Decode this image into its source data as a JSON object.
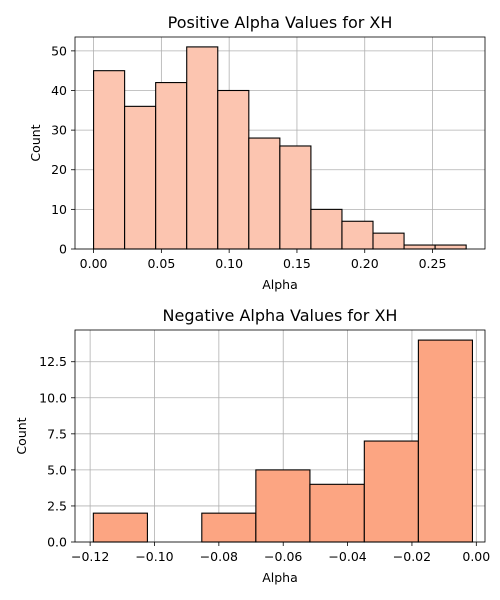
{
  "chart_data": [
    {
      "type": "bar",
      "title": "Positive Alpha Values for XH",
      "xlabel": "Alpha",
      "ylabel": "Count",
      "xlim": [
        -0.0137,
        0.2887
      ],
      "ylim": [
        0,
        53.5
      ],
      "grid": true,
      "color": "#fcc5b0",
      "edge_color": "#000000",
      "xticks": [
        0.0,
        0.05,
        0.1,
        0.15,
        0.2,
        0.25
      ],
      "xtick_labels": [
        "0.00",
        "0.05",
        "0.10",
        "0.15",
        "0.20",
        "0.25"
      ],
      "yticks": [
        0,
        10,
        20,
        30,
        40,
        50
      ],
      "ytick_labels": [
        "0",
        "10",
        "20",
        "30",
        "40",
        "50"
      ],
      "bins": [
        {
          "x0": 0.0,
          "x1": 0.0229,
          "value": 45
        },
        {
          "x0": 0.0229,
          "x1": 0.0458,
          "value": 36
        },
        {
          "x0": 0.0458,
          "x1": 0.0687,
          "value": 42
        },
        {
          "x0": 0.0687,
          "x1": 0.0916,
          "value": 51
        },
        {
          "x0": 0.0916,
          "x1": 0.1145,
          "value": 40
        },
        {
          "x0": 0.1145,
          "x1": 0.1374,
          "value": 28
        },
        {
          "x0": 0.1374,
          "x1": 0.1603,
          "value": 26
        },
        {
          "x0": 0.1603,
          "x1": 0.1832,
          "value": 10
        },
        {
          "x0": 0.1832,
          "x1": 0.2061,
          "value": 7
        },
        {
          "x0": 0.2061,
          "x1": 0.229,
          "value": 4
        },
        {
          "x0": 0.229,
          "x1": 0.2519,
          "value": 1
        },
        {
          "x0": 0.2519,
          "x1": 0.2748,
          "value": 1
        }
      ]
    },
    {
      "type": "bar",
      "title": "Negative Alpha Values for XH",
      "xlabel": "Alpha",
      "ylabel": "Count",
      "xlim": [
        -0.1247,
        0.0027
      ],
      "ylim": [
        0,
        14.7
      ],
      "grid": true,
      "color": "#fca582",
      "edge_color": "#000000",
      "xticks": [
        -0.12,
        -0.1,
        -0.08,
        -0.06,
        -0.04,
        -0.02,
        0.0
      ],
      "xtick_labels": [
        "−0.12",
        "−0.10",
        "−0.08",
        "−0.06",
        "−0.04",
        "−0.02",
        "0.00"
      ],
      "yticks": [
        0,
        2.5,
        5,
        7.5,
        10,
        12.5
      ],
      "ytick_labels": [
        "0.0",
        "2.5",
        "5.0",
        "7.5",
        "10.0",
        "12.5"
      ],
      "bins": [
        {
          "x0": -0.119,
          "x1": -0.1022,
          "value": 2
        },
        {
          "x0": -0.1022,
          "x1": -0.0853,
          "value": 0
        },
        {
          "x0": -0.0853,
          "x1": -0.0685,
          "value": 2
        },
        {
          "x0": -0.0685,
          "x1": -0.0517,
          "value": 5
        },
        {
          "x0": -0.0517,
          "x1": -0.0348,
          "value": 4
        },
        {
          "x0": -0.0348,
          "x1": -0.018,
          "value": 7
        },
        {
          "x0": -0.018,
          "x1": -0.0012,
          "value": 14
        }
      ]
    }
  ]
}
